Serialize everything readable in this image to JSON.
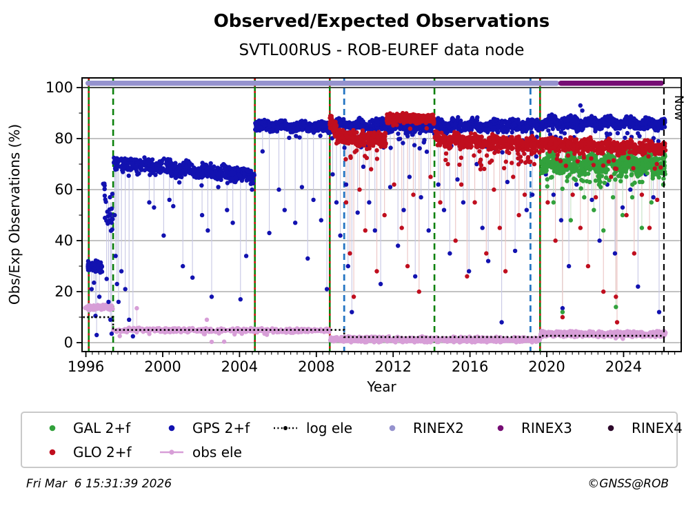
{
  "header": {
    "title": "Observed/Expected Observations",
    "subtitle": "SVTL00RUS - ROB-EUREF data node"
  },
  "footer": {
    "timestamp": "Fri Mar  6 15:31:39 2026",
    "copyright": "©GNSS@ROB"
  },
  "legend": {
    "items": [
      {
        "label": "GAL 2+f",
        "marker": "dot",
        "color": "#32a13c",
        "row": 1,
        "col": 1
      },
      {
        "label": "GPS 2+f",
        "marker": "dot",
        "color": "#1212b0",
        "row": 1,
        "col": 2
      },
      {
        "label": "log ele",
        "marker": "dotted-line",
        "color": "#000000",
        "row": 1,
        "col": 3
      },
      {
        "label": "RINEX2",
        "marker": "dot",
        "color": "#9592ce",
        "row": 1,
        "col": 4
      },
      {
        "label": "RINEX3",
        "marker": "dot",
        "color": "#760d74",
        "row": 1,
        "col": 5
      },
      {
        "label": "RINEX4",
        "marker": "dot",
        "color": "#2d092b",
        "row": 1,
        "col": 6
      },
      {
        "label": "GLO 2+f",
        "marker": "dot",
        "color": "#c00e1e",
        "row": 2,
        "col": 1
      },
      {
        "label": "obs ele",
        "marker": "line-dot",
        "color": "#d79ed7",
        "row": 2,
        "col": 2
      }
    ]
  },
  "chart_data": {
    "type": "scatter",
    "title": "Observed/Expected Observations",
    "subtitle": "SVTL00RUS - ROB-EUREF data node",
    "xlabel": "Year",
    "ylabel": "Obs/Exp Observations (%)",
    "xlim": [
      1995.8,
      2027.0
    ],
    "ylim": [
      -3.5,
      103.8
    ],
    "x_major_ticks": [
      1996,
      2000,
      2004,
      2008,
      2012,
      2016,
      2020,
      2024
    ],
    "x_minor_step": 0.3333,
    "y_major_ticks": [
      0,
      20,
      40,
      60,
      80,
      100
    ],
    "y_minor_ticks": [
      10,
      30,
      50,
      70,
      90
    ],
    "grid_y": [
      0,
      20,
      40,
      60,
      80
    ],
    "grid_y_dark": [
      100
    ],
    "now": {
      "x": 2026.1,
      "label": "Now"
    },
    "colors": {
      "GPS": "#1212b0",
      "GLO": "#c00e1e",
      "GAL": "#32a13c",
      "OBS": "#d79ed7",
      "stem": {
        "GPS": "#c9c9e6",
        "GLO": "#ecc6c6",
        "GAL": "#c6e2c6",
        "OBS": "#e7cfe7"
      },
      "grid": "#a6a6a6",
      "grid_dark": "#1b1b1b",
      "event_green": "#0b800b",
      "event_red": "#d01010",
      "event_blue": "#2474c2",
      "now_line": "#000000",
      "log_ele": "#000000",
      "rinex2": "#9592ce",
      "rinex3": "#760d74",
      "rinex4": "#2d092b"
    },
    "event_lines": [
      {
        "x": 1996.15,
        "style": "green-red"
      },
      {
        "x": 1997.42,
        "style": "green-dashed"
      },
      {
        "x": 2004.8,
        "style": "green-red"
      },
      {
        "x": 2008.7,
        "style": "green-red"
      },
      {
        "x": 2009.45,
        "style": "blue-dashed"
      },
      {
        "x": 2014.15,
        "style": "green-dashed"
      },
      {
        "x": 2019.15,
        "style": "blue-dashed"
      },
      {
        "x": 2019.65,
        "style": "green-red"
      }
    ],
    "rinex_bars": [
      {
        "name": "RINEX2",
        "x0": 1995.98,
        "x1": 2020.65,
        "color": "#9592ce"
      },
      {
        "name": "RINEX3",
        "x0": 2020.6,
        "x1": 2026.1,
        "color": "#760d74"
      }
    ],
    "log_ele_steps": [
      [
        1995.85,
        1997.42,
        10.0
      ],
      [
        1997.42,
        2009.45,
        5.0
      ],
      [
        2009.45,
        2019.65,
        2.2
      ],
      [
        2019.65,
        2026.1,
        2.7
      ]
    ],
    "band_centers": {
      "GPS": [
        [
          1995.9,
          1997.0,
          30
        ],
        [
          1997.0,
          1997.45,
          55
        ],
        [
          1997.45,
          2004.8,
          68
        ],
        [
          2004.8,
          2008.7,
          84.7
        ],
        [
          2008.7,
          2019.65,
          85
        ],
        [
          2019.65,
          2026.3,
          86
        ]
      ],
      "GLO": [
        [
          2008.7,
          2011.65,
          81
        ],
        [
          2011.65,
          2014.15,
          88
        ],
        [
          2014.15,
          2026.3,
          77.5
        ]
      ],
      "GAL": [
        [
          2019.65,
          2026.3,
          70
        ]
      ],
      "OBS": [
        [
          1995.9,
          1997.42,
          13.8
        ],
        [
          1997.42,
          2008.7,
          4.9
        ],
        [
          2008.7,
          2019.65,
          1.3
        ],
        [
          2019.65,
          2026.3,
          3.4
        ]
      ]
    },
    "scatter_bands": [
      {
        "s": "OBS",
        "x0": 1995.95,
        "x1": 1997.4,
        "y0": 13.8,
        "y1": 13.8,
        "j": 0.8,
        "n": 80
      },
      {
        "s": "OBS",
        "x0": 1997.42,
        "x1": 2008.7,
        "y0": 5.0,
        "y1": 4.7,
        "j": 0.65,
        "n": 480,
        "tp": 0.04,
        "td": 2.2
      },
      {
        "s": "OBS",
        "x0": 2008.72,
        "x1": 2019.65,
        "y0": 1.3,
        "y1": 1.2,
        "j": 0.85,
        "n": 640,
        "tp": 0.03,
        "td": 1.0
      },
      {
        "s": "OBS",
        "x0": 2019.65,
        "x1": 2026.2,
        "y0": 3.4,
        "y1": 3.4,
        "j": 0.85,
        "n": 560,
        "tp": 0.03,
        "td": 1.5
      },
      {
        "s": "GPS",
        "x0": 1996.1,
        "x1": 1996.85,
        "y0": 30.5,
        "y1": 29.5,
        "j": 1.8,
        "n": 90
      },
      {
        "s": "GPS",
        "x0": 1996.9,
        "x1": 1997.4,
        "y0": 58,
        "y1": 50,
        "j": 7,
        "n": 24
      },
      {
        "s": "GPS",
        "x0": 1997.45,
        "x1": 2004.78,
        "y0": 70.6,
        "y1": 65.4,
        "j": 2.3,
        "n": 560,
        "tp": 0.035,
        "td": 6,
        "w": 0.7
      },
      {
        "s": "GPS",
        "x0": 2004.82,
        "x1": 2008.68,
        "y0": 85.0,
        "y1": 84.5,
        "j": 1.5,
        "n": 420,
        "tp": 0.03,
        "td": 5,
        "w": 0.5
      },
      {
        "s": "GPS",
        "x0": 2008.72,
        "x1": 2019.63,
        "y0": 85.0,
        "y1": 85.3,
        "j": 1.9,
        "n": 950,
        "tp": 0.09,
        "td": 9,
        "w": 0.8
      },
      {
        "s": "GPS",
        "x0": 2019.67,
        "x1": 2026.18,
        "y0": 86.3,
        "y1": 85.8,
        "j": 1.7,
        "n": 640,
        "tp": 0.05,
        "td": 7,
        "w": 0.8
      },
      {
        "s": "GAL",
        "x0": 2019.7,
        "x1": 2026.18,
        "y0": 70.5,
        "y1": 70.0,
        "j": 3.1,
        "n": 740,
        "tp": 0.09,
        "td": 8,
        "w": 1.5
      },
      {
        "s": "GLO",
        "x0": 2008.7,
        "x1": 2009.05,
        "y0": 87,
        "y1": 83,
        "j": 2.2,
        "n": 80
      },
      {
        "s": "GLO",
        "x0": 2009.05,
        "x1": 2011.63,
        "y0": 80.5,
        "y1": 79.5,
        "j": 2.3,
        "n": 250,
        "tp": 0.08,
        "td": 8
      },
      {
        "s": "GLO",
        "x0": 2011.67,
        "x1": 2014.13,
        "y0": 88,
        "y1": 88,
        "j": 1.5,
        "n": 300,
        "tp": 0.02,
        "td": 4
      },
      {
        "s": "GLO",
        "x0": 2014.17,
        "x1": 2019.63,
        "y0": 79.5,
        "y1": 77.5,
        "j": 2.3,
        "n": 480,
        "tp": 0.08,
        "td": 9,
        "w": 0.7
      },
      {
        "s": "GLO",
        "x0": 2019.67,
        "x1": 2026.18,
        "y0": 78.0,
        "y1": 76.0,
        "j": 2.0,
        "n": 560,
        "tp": 0.06,
        "td": 8,
        "w": 0.7
      }
    ],
    "outliers": {
      "GPS": [
        [
          1996.3,
          21
        ],
        [
          1996.42,
          23.5
        ],
        [
          1996.5,
          10.5
        ],
        [
          1996.56,
          3
        ],
        [
          1996.7,
          18
        ],
        [
          1997.08,
          25
        ],
        [
          1997.18,
          16
        ],
        [
          1997.28,
          9
        ],
        [
          1997.34,
          3.5
        ],
        [
          1997.5,
          50
        ],
        [
          1997.55,
          34
        ],
        [
          1997.62,
          23
        ],
        [
          1997.7,
          16
        ],
        [
          1997.85,
          28
        ],
        [
          1998.05,
          21
        ],
        [
          1998.25,
          9
        ],
        [
          1998.45,
          2.5
        ],
        [
          1999.3,
          55
        ],
        [
          1999.55,
          53
        ],
        [
          2000.05,
          42
        ],
        [
          2000.35,
          56
        ],
        [
          2000.55,
          53.5
        ],
        [
          2001.05,
          30
        ],
        [
          2001.55,
          25.5
        ],
        [
          2002.05,
          50
        ],
        [
          2002.35,
          44
        ],
        [
          2002.55,
          18
        ],
        [
          2003.35,
          52
        ],
        [
          2003.65,
          47
        ],
        [
          2004.05,
          17
        ],
        [
          2004.35,
          34
        ],
        [
          2004.65,
          60
        ],
        [
          2005.2,
          75
        ],
        [
          2005.55,
          43
        ],
        [
          2006.05,
          60
        ],
        [
          2006.35,
          52
        ],
        [
          2006.9,
          47
        ],
        [
          2007.25,
          61
        ],
        [
          2007.55,
          33
        ],
        [
          2007.85,
          56
        ],
        [
          2008.25,
          48
        ],
        [
          2008.55,
          21
        ],
        [
          2008.85,
          66
        ],
        [
          2009.05,
          55
        ],
        [
          2009.25,
          42
        ],
        [
          2009.55,
          62
        ],
        [
          2009.65,
          30
        ],
        [
          2009.85,
          12
        ],
        [
          2010.15,
          51
        ],
        [
          2010.45,
          69
        ],
        [
          2010.75,
          55
        ],
        [
          2011.05,
          44
        ],
        [
          2011.35,
          23
        ],
        [
          2011.85,
          61
        ],
        [
          2012.25,
          38
        ],
        [
          2012.55,
          52
        ],
        [
          2012.85,
          65
        ],
        [
          2013.15,
          26
        ],
        [
          2013.45,
          57
        ],
        [
          2013.85,
          44
        ],
        [
          2014.35,
          62
        ],
        [
          2014.65,
          52
        ],
        [
          2014.95,
          35
        ],
        [
          2015.35,
          64
        ],
        [
          2015.65,
          55
        ],
        [
          2015.95,
          28
        ],
        [
          2016.35,
          70
        ],
        [
          2016.65,
          45
        ],
        [
          2016.95,
          32
        ],
        [
          2017.35,
          75
        ],
        [
          2017.65,
          8
        ],
        [
          2017.95,
          63
        ],
        [
          2018.35,
          36
        ],
        [
          2018.65,
          71
        ],
        [
          2018.95,
          52
        ],
        [
          2019.25,
          58
        ],
        [
          2019.45,
          73
        ],
        [
          2019.95,
          66
        ],
        [
          2020.35,
          58
        ],
        [
          2020.75,
          48
        ],
        [
          2020.82,
          13.5
        ],
        [
          2021.15,
          30
        ],
        [
          2021.55,
          62
        ],
        [
          2021.75,
          93
        ],
        [
          2021.85,
          91
        ],
        [
          2022.35,
          56
        ],
        [
          2022.75,
          40
        ],
        [
          2023.15,
          62
        ],
        [
          2023.55,
          35
        ],
        [
          2023.95,
          53
        ],
        [
          2024.35,
          60
        ],
        [
          2024.75,
          22
        ],
        [
          2025.15,
          66
        ],
        [
          2025.55,
          57
        ],
        [
          2025.85,
          12
        ]
      ],
      "GLO": [
        [
          2009.55,
          55
        ],
        [
          2009.75,
          35
        ],
        [
          2009.95,
          18
        ],
        [
          2010.25,
          60
        ],
        [
          2010.55,
          44
        ],
        [
          2010.85,
          68
        ],
        [
          2011.15,
          28
        ],
        [
          2011.55,
          50
        ],
        [
          2012.05,
          62
        ],
        [
          2012.45,
          45
        ],
        [
          2012.75,
          30
        ],
        [
          2013.05,
          58
        ],
        [
          2013.35,
          20
        ],
        [
          2013.95,
          65
        ],
        [
          2014.45,
          55
        ],
        [
          2014.85,
          70
        ],
        [
          2015.25,
          40
        ],
        [
          2015.55,
          62
        ],
        [
          2015.85,
          26
        ],
        [
          2016.25,
          55
        ],
        [
          2016.55,
          68
        ],
        [
          2016.85,
          35
        ],
        [
          2017.25,
          60
        ],
        [
          2017.55,
          45
        ],
        [
          2017.85,
          28
        ],
        [
          2018.25,
          65
        ],
        [
          2018.55,
          50
        ],
        [
          2018.85,
          58
        ],
        [
          2019.35,
          70
        ],
        [
          2020.05,
          55
        ],
        [
          2020.45,
          40
        ],
        [
          2020.82,
          10
        ],
        [
          2021.35,
          58
        ],
        [
          2021.75,
          45
        ],
        [
          2022.15,
          30
        ],
        [
          2022.55,
          57
        ],
        [
          2022.95,
          20
        ],
        [
          2023.35,
          65
        ],
        [
          2023.6,
          18
        ],
        [
          2023.66,
          8
        ],
        [
          2024.15,
          50
        ],
        [
          2024.55,
          35
        ],
        [
          2024.95,
          58
        ],
        [
          2025.35,
          45
        ],
        [
          2025.75,
          56
        ]
      ],
      "GAL": [
        [
          2020.35,
          55
        ],
        [
          2020.82,
          12
        ],
        [
          2021.25,
          48
        ],
        [
          2021.95,
          57
        ],
        [
          2022.45,
          52
        ],
        [
          2022.95,
          44
        ],
        [
          2023.45,
          57
        ],
        [
          2023.6,
          14
        ],
        [
          2023.95,
          50
        ],
        [
          2024.45,
          57
        ],
        [
          2024.95,
          45
        ],
        [
          2025.45,
          55
        ]
      ],
      "OBS": [
        [
          1998.65,
          13.5
        ],
        [
          2002.3,
          9
        ],
        [
          2002.55,
          0.3
        ],
        [
          2003.2,
          0.4
        ],
        [
          2010.6,
          0.2
        ],
        [
          2012.5,
          0.2
        ]
      ]
    }
  }
}
